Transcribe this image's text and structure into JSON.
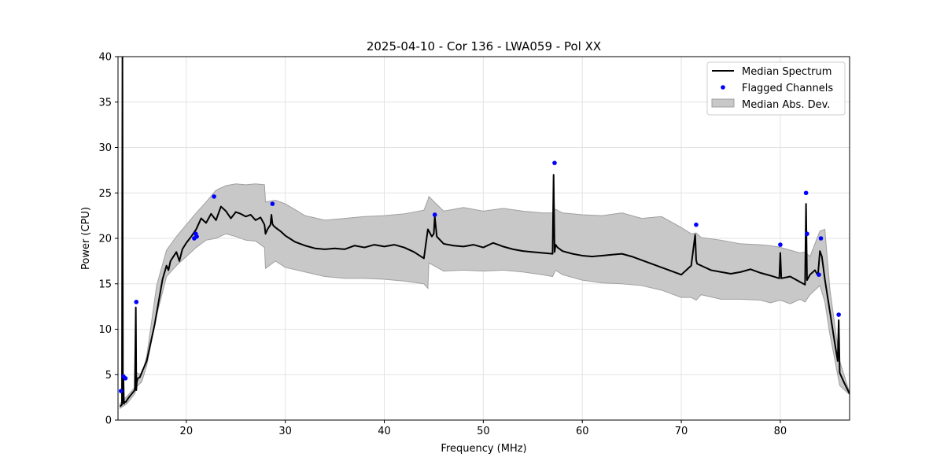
{
  "chart_data": {
    "type": "line",
    "title": "2025-04-10 - Cor 136 - LWA059 - Pol XX",
    "xlabel": "Frequency (MHz)",
    "ylabel": "Power (CPU)",
    "xlim": [
      13.1,
      87.0
    ],
    "ylim": [
      0,
      40
    ],
    "xticks": [
      20,
      30,
      40,
      50,
      60,
      70,
      80
    ],
    "yticks": [
      0,
      5,
      10,
      15,
      20,
      25,
      30,
      35,
      40
    ],
    "grid": true,
    "legend_position": "upper-right",
    "legend": [
      "Median Spectrum",
      "Flagged Channels",
      "Median Abs. Dev."
    ],
    "colors": {
      "line": "#000000",
      "flagged": "#0000ff",
      "band_fill": "#c8c8c8",
      "band_edge": "#a0a0a0"
    },
    "series": [
      {
        "name": "Median Spectrum",
        "kind": "line",
        "x": [
          13.3,
          13.4,
          13.5,
          13.55,
          13.6,
          13.65,
          13.7,
          13.8,
          13.9,
          14.0,
          14.2,
          14.5,
          14.8,
          14.9,
          14.95,
          15.0,
          15.1,
          15.3,
          15.6,
          16.0,
          16.4,
          16.8,
          17.2,
          17.6,
          18.0,
          18.2,
          18.4,
          18.7,
          19.0,
          19.3,
          19.6,
          20.0,
          20.5,
          21.0,
          21.5,
          22.0,
          22.5,
          23.0,
          23.5,
          24.0,
          24.5,
          25.0,
          25.5,
          26.0,
          26.5,
          27.0,
          27.5,
          27.9,
          28.0,
          28.2,
          28.5,
          28.6,
          28.7,
          28.8,
          29.0,
          29.5,
          30.0,
          31.0,
          32.0,
          33.0,
          34.0,
          35.0,
          36.0,
          37.0,
          38.0,
          39.0,
          40.0,
          41.0,
          42.0,
          43.0,
          44.0,
          44.4,
          44.5,
          44.8,
          45.0,
          45.1,
          45.3,
          46.0,
          47.0,
          48.0,
          49.0,
          50.0,
          51.0,
          52.0,
          53.0,
          54.0,
          55.0,
          56.0,
          57.0,
          57.1,
          57.2,
          57.3,
          57.5,
          58.0,
          59.0,
          60.0,
          61.0,
          62.0,
          63.0,
          64.0,
          65.0,
          66.0,
          67.0,
          68.0,
          69.0,
          70.0,
          71.0,
          71.4,
          71.5,
          71.6,
          72.0,
          73.0,
          74.0,
          75.0,
          76.0,
          77.0,
          78.0,
          79.0,
          79.9,
          80.0,
          80.1,
          81.0,
          82.0,
          82.5,
          82.6,
          82.7,
          82.8,
          83.0,
          83.5,
          83.8,
          84.0,
          84.2,
          84.5,
          85.0,
          85.5,
          85.8,
          85.9,
          86.0,
          86.5,
          87.0
        ],
        "y": [
          1.5,
          1.6,
          1.7,
          40.0,
          1.9,
          4.5,
          1.8,
          2.0,
          2.0,
          2.2,
          2.5,
          2.9,
          3.3,
          12.4,
          3.3,
          4.2,
          4.6,
          4.7,
          5.5,
          6.5,
          8.5,
          10.5,
          13.0,
          15.5,
          17.0,
          16.5,
          17.5,
          18.0,
          18.5,
          17.5,
          18.8,
          19.5,
          20.2,
          21.0,
          22.2,
          21.7,
          22.7,
          22.0,
          23.5,
          23.0,
          22.2,
          22.9,
          22.7,
          22.4,
          22.6,
          22.0,
          22.3,
          21.5,
          20.5,
          21.0,
          21.5,
          22.6,
          21.6,
          21.4,
          21.2,
          20.8,
          20.3,
          19.6,
          19.2,
          18.9,
          18.8,
          18.9,
          18.8,
          19.2,
          19.0,
          19.3,
          19.1,
          19.3,
          19.0,
          18.5,
          17.8,
          21.0,
          20.8,
          20.2,
          20.5,
          22.4,
          20.2,
          19.4,
          19.2,
          19.1,
          19.3,
          19.0,
          19.5,
          19.1,
          18.8,
          18.6,
          18.5,
          18.4,
          18.3,
          27.0,
          18.5,
          19.3,
          19.0,
          18.6,
          18.3,
          18.1,
          18.0,
          18.1,
          18.2,
          18.3,
          18.0,
          17.6,
          17.2,
          16.8,
          16.4,
          16.0,
          17.0,
          20.4,
          17.6,
          17.2,
          17.0,
          16.5,
          16.3,
          16.1,
          16.3,
          16.6,
          16.2,
          15.9,
          15.6,
          18.4,
          15.6,
          15.8,
          15.2,
          14.9,
          23.8,
          15.4,
          15.6,
          16.0,
          16.5,
          15.9,
          18.6,
          18.0,
          15.5,
          12.0,
          8.5,
          6.5,
          11.0,
          5.2,
          4.0,
          2.9
        ]
      },
      {
        "name": "Median Abs. Dev.",
        "kind": "band",
        "x": [
          13.3,
          13.6,
          14.0,
          14.8,
          15.0,
          15.5,
          16.0,
          17.0,
          18.0,
          19.0,
          20.0,
          21.0,
          22.0,
          23.0,
          24.0,
          25.0,
          26.0,
          27.0,
          27.9,
          28.0,
          29.0,
          30.0,
          32.0,
          34.0,
          36.0,
          38.0,
          40.0,
          42.0,
          44.0,
          44.4,
          44.5,
          46.0,
          48.0,
          50.0,
          52.0,
          54.0,
          56.0,
          57.0,
          57.3,
          58.0,
          60.0,
          62.0,
          64.0,
          66.0,
          68.0,
          70.0,
          71.0,
          71.5,
          72.0,
          74.0,
          76.0,
          78.0,
          79.0,
          80.0,
          81.0,
          82.0,
          82.5,
          83.0,
          84.0,
          84.5,
          85.0,
          86.0,
          87.0
        ],
        "lower": [
          1.3,
          1.5,
          1.8,
          2.9,
          3.7,
          4.2,
          6.0,
          11.5,
          15.8,
          17.0,
          18.0,
          19.0,
          19.8,
          20.0,
          20.5,
          20.2,
          19.8,
          19.7,
          19.0,
          16.7,
          17.5,
          16.8,
          16.3,
          15.8,
          15.6,
          15.6,
          15.5,
          15.3,
          15.0,
          14.5,
          17.3,
          16.4,
          16.5,
          16.4,
          16.5,
          16.3,
          16.0,
          15.8,
          16.5,
          16.0,
          15.4,
          15.1,
          15.0,
          14.8,
          14.3,
          13.5,
          13.5,
          13.2,
          13.8,
          13.3,
          13.3,
          13.2,
          12.9,
          13.2,
          12.8,
          13.3,
          13.0,
          13.8,
          14.8,
          13.0,
          9.5,
          3.8,
          2.8
        ],
        "upper": [
          1.8,
          2.2,
          2.6,
          3.6,
          5.2,
          5.0,
          7.0,
          14.8,
          18.7,
          20.2,
          21.5,
          22.8,
          24.0,
          25.3,
          25.8,
          26.0,
          25.9,
          26.0,
          25.9,
          24.0,
          24.2,
          23.8,
          22.5,
          22.0,
          22.2,
          22.4,
          22.5,
          22.7,
          23.1,
          24.2,
          24.6,
          23.0,
          23.4,
          23.0,
          23.3,
          23.0,
          22.8,
          22.8,
          23.2,
          22.8,
          22.6,
          22.5,
          22.8,
          22.2,
          22.4,
          21.2,
          20.5,
          20.6,
          20.1,
          19.8,
          19.4,
          19.3,
          19.2,
          19.0,
          18.7,
          18.4,
          18.5,
          18.0,
          20.8,
          21.0,
          14.5,
          6.5,
          3.0
        ]
      },
      {
        "name": "Flagged Channels",
        "kind": "scatter",
        "x": [
          13.4,
          13.65,
          13.85,
          14.95,
          20.8,
          20.95,
          21.05,
          22.8,
          28.7,
          45.1,
          57.2,
          71.5,
          80.0,
          82.6,
          82.7,
          83.9,
          84.1,
          85.9
        ],
        "y": [
          3.2,
          4.8,
          4.6,
          13.0,
          20.0,
          20.5,
          20.2,
          24.6,
          23.8,
          22.6,
          28.3,
          21.5,
          19.3,
          25.0,
          20.5,
          16.0,
          20.0,
          11.6
        ]
      }
    ]
  }
}
